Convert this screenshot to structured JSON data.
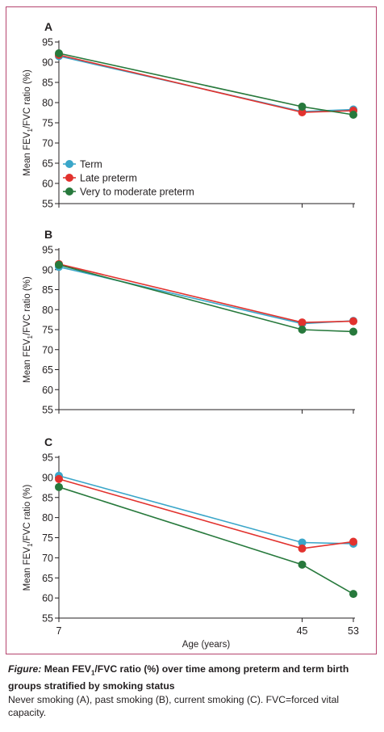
{
  "chart_data": [
    {
      "type": "line",
      "panel": "A",
      "x": [
        7,
        45,
        53
      ],
      "ylabel_pre": "Mean FEV",
      "ylabel_sub": "1",
      "ylabel_post": "/FVC ratio (%)",
      "ylim": [
        55,
        95
      ],
      "yticks": [
        55,
        60,
        65,
        70,
        75,
        80,
        85,
        90,
        95
      ],
      "legend_position": "lower-left",
      "series": [
        {
          "name": "Term",
          "color": "#3aa6c9",
          "values": [
            91.5,
            77.8,
            78.3
          ]
        },
        {
          "name": "Late preterm",
          "color": "#e2322e",
          "values": [
            91.8,
            77.6,
            78.0
          ]
        },
        {
          "name": "Very to moderate preterm",
          "color": "#27793c",
          "values": [
            92.2,
            79.0,
            77.0
          ]
        }
      ]
    },
    {
      "type": "line",
      "panel": "B",
      "x": [
        7,
        45,
        53
      ],
      "ylabel_pre": "Mean FEV",
      "ylabel_sub": "1",
      "ylabel_post": "/FVC ratio (%)",
      "ylim": [
        55,
        95
      ],
      "yticks": [
        55,
        60,
        65,
        70,
        75,
        80,
        85,
        90,
        95
      ],
      "series": [
        {
          "name": "Term",
          "color": "#3aa6c9",
          "values": [
            90.7,
            76.5,
            77.2
          ]
        },
        {
          "name": "Late preterm",
          "color": "#e2322e",
          "values": [
            91.4,
            76.8,
            77.1
          ]
        },
        {
          "name": "Very to moderate preterm",
          "color": "#27793c",
          "values": [
            91.2,
            75.0,
            74.5
          ]
        }
      ]
    },
    {
      "type": "line",
      "panel": "C",
      "x": [
        7,
        45,
        53
      ],
      "xticks": [
        "7",
        "45",
        "53"
      ],
      "xlabel": "Age (years)",
      "ylabel_pre": "Mean FEV",
      "ylabel_sub": "1",
      "ylabel_post": "/FVC ratio (%)",
      "ylim": [
        55,
        95
      ],
      "yticks": [
        55,
        60,
        65,
        70,
        75,
        80,
        85,
        90,
        95
      ],
      "series": [
        {
          "name": "Term",
          "color": "#3aa6c9",
          "values": [
            90.4,
            73.8,
            73.5
          ]
        },
        {
          "name": "Late preterm",
          "color": "#e2322e",
          "values": [
            89.6,
            72.3,
            74.0
          ]
        },
        {
          "name": "Very to moderate preterm",
          "color": "#27793c",
          "values": [
            87.6,
            68.3,
            61.0
          ]
        }
      ]
    }
  ],
  "caption": {
    "figure_label": "Figure:",
    "title_pre": " Mean FEV",
    "title_sub": "1",
    "title_post": "/FVC ratio (%) over time among preterm and term birth groups stratified by smoking status",
    "note": "Never smoking (A), past smoking (B), current smoking (C). FVC=forced vital capacity."
  }
}
